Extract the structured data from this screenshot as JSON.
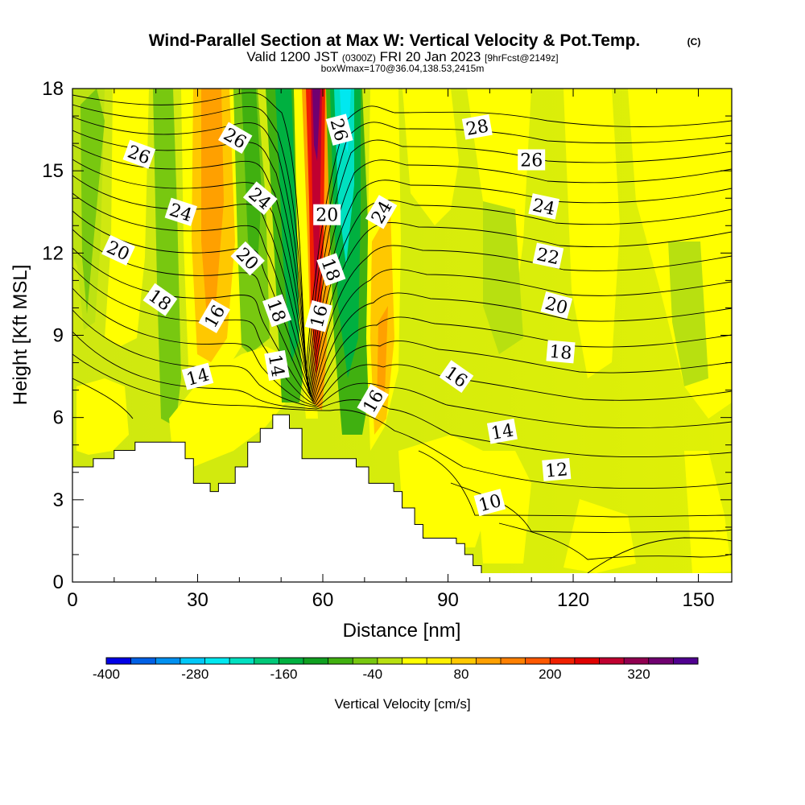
{
  "header": {
    "title": "Wind-Parallel Section at Max W: Vertical Velocity & Pot.Temp.",
    "title_mark": "(C)",
    "valid_prefix": "Valid 1200 JST",
    "valid_utc": "(0300Z)",
    "valid_date": "FRI 20 Jan 2023",
    "forecast": "[9hrFcst@2149z]",
    "box_info": "boxWmax=170@36.04,138.53,2415m"
  },
  "chart_data": {
    "type": "heatmap",
    "xlabel": "Distance [nm]",
    "ylabel": "Height [Kft MSL]",
    "xlim": [
      0,
      158
    ],
    "ylim": [
      0,
      18
    ],
    "x_ticks": [
      0,
      30,
      60,
      90,
      120,
      150
    ],
    "y_ticks": [
      0,
      3,
      6,
      9,
      12,
      15,
      18
    ],
    "colorbar": {
      "label": "Vertical Velocity [cm/s]",
      "min": -400,
      "max": 400,
      "step": 40,
      "tick_labels": [
        "-400",
        "-280",
        "-160",
        "-40",
        "80",
        "200",
        "320"
      ],
      "colors": [
        "#0000e6",
        "#0060e6",
        "#0090f0",
        "#00c8f8",
        "#00e8f0",
        "#00e0c0",
        "#00c878",
        "#00b040",
        "#10a020",
        "#40b010",
        "#78c810",
        "#b8e010",
        "#ffff00",
        "#fff000",
        "#ffc800",
        "#ffa000",
        "#ff8000",
        "#ff5800",
        "#f02000",
        "#e00000",
        "#c00030",
        "#900050",
        "#700070",
        "#500090"
      ]
    },
    "terrain": [
      [
        0,
        4.2
      ],
      [
        5,
        4.2
      ],
      [
        5,
        4.5
      ],
      [
        10,
        4.5
      ],
      [
        10,
        4.8
      ],
      [
        15,
        4.8
      ],
      [
        15,
        5.1
      ],
      [
        27,
        5.1
      ],
      [
        27,
        4.5
      ],
      [
        29,
        4.5
      ],
      [
        29,
        3.6
      ],
      [
        33,
        3.6
      ],
      [
        33,
        3.3
      ],
      [
        35,
        3.3
      ],
      [
        35,
        3.6
      ],
      [
        39,
        3.6
      ],
      [
        39,
        4.2
      ],
      [
        42,
        4.2
      ],
      [
        42,
        5.1
      ],
      [
        45,
        5.1
      ],
      [
        45,
        5.6
      ],
      [
        48,
        5.6
      ],
      [
        48,
        6.1
      ],
      [
        52,
        6.1
      ],
      [
        52,
        5.6
      ],
      [
        55,
        5.6
      ],
      [
        55,
        4.5
      ],
      [
        68,
        4.5
      ],
      [
        68,
        4.2
      ],
      [
        71,
        4.2
      ],
      [
        71,
        3.6
      ],
      [
        77,
        3.6
      ],
      [
        77,
        3.3
      ],
      [
        79,
        3.3
      ],
      [
        79,
        2.7
      ],
      [
        82,
        2.7
      ],
      [
        82,
        2.1
      ],
      [
        84,
        2.1
      ],
      [
        84,
        1.6
      ],
      [
        92,
        1.6
      ],
      [
        92,
        1.4
      ],
      [
        94,
        1.4
      ],
      [
        94,
        1.0
      ],
      [
        96,
        1.0
      ],
      [
        96,
        0.6
      ],
      [
        98,
        0.6
      ],
      [
        98,
        0.3
      ],
      [
        158,
        0.3
      ]
    ],
    "contour_labels": [
      {
        "text": "26",
        "x": 16,
        "y": 15.6,
        "rot": 20
      },
      {
        "text": "24",
        "x": 26,
        "y": 13.5,
        "rot": 18
      },
      {
        "text": "20",
        "x": 11,
        "y": 12.1,
        "rot": 25
      },
      {
        "text": "18",
        "x": 21,
        "y": 10.3,
        "rot": 35
      },
      {
        "text": "16",
        "x": 34,
        "y": 9.7,
        "rot": -60
      },
      {
        "text": "14",
        "x": 30,
        "y": 7.5,
        "rot": -15
      },
      {
        "text": "26",
        "x": 39,
        "y": 16.2,
        "rot": 30
      },
      {
        "text": "24",
        "x": 45,
        "y": 14.0,
        "rot": 40
      },
      {
        "text": "20",
        "x": 42,
        "y": 11.8,
        "rot": 45
      },
      {
        "text": "18",
        "x": 49,
        "y": 9.9,
        "rot": 70
      },
      {
        "text": "14",
        "x": 49,
        "y": 7.9,
        "rot": 80
      },
      {
        "text": "26",
        "x": 64,
        "y": 16.5,
        "rot": 75
      },
      {
        "text": "20",
        "x": 61,
        "y": 13.4,
        "rot": 0
      },
      {
        "text": "18",
        "x": 62,
        "y": 11.4,
        "rot": 70
      },
      {
        "text": "16",
        "x": 59,
        "y": 9.7,
        "rot": -75
      },
      {
        "text": "24",
        "x": 74,
        "y": 13.5,
        "rot": -60
      },
      {
        "text": "16",
        "x": 72,
        "y": 6.6,
        "rot": -60
      },
      {
        "text": "28",
        "x": 97,
        "y": 16.6,
        "rot": -10
      },
      {
        "text": "26",
        "x": 110,
        "y": 15.4,
        "rot": 0
      },
      {
        "text": "24",
        "x": 113,
        "y": 13.7,
        "rot": 12
      },
      {
        "text": "22",
        "x": 114,
        "y": 11.9,
        "rot": 12
      },
      {
        "text": "20",
        "x": 116,
        "y": 10.1,
        "rot": 15
      },
      {
        "text": "18",
        "x": 117,
        "y": 8.4,
        "rot": 5
      },
      {
        "text": "16",
        "x": 92,
        "y": 7.5,
        "rot": 35
      },
      {
        "text": "14",
        "x": 103,
        "y": 5.5,
        "rot": -10
      },
      {
        "text": "12",
        "x": 116,
        "y": 4.1,
        "rot": -5
      },
      {
        "text": "10",
        "x": 100,
        "y": 2.9,
        "rot": -15
      }
    ]
  }
}
